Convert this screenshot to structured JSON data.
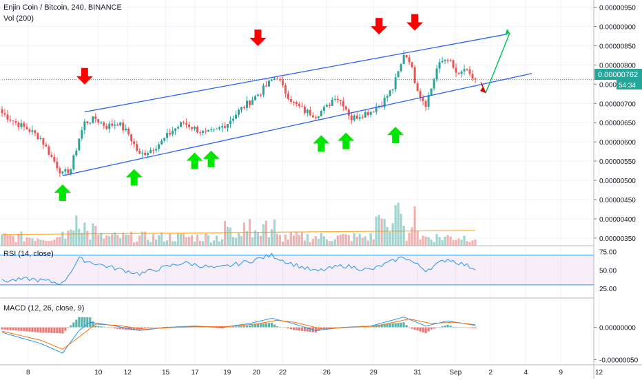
{
  "header": {
    "symbol_title": "Enjin Coin / Bitcoin, 240, BINANCE",
    "volume_label": "Vol (200)",
    "rsi_label": "RSI (14, close)",
    "macd_label": "MACD (12, 26, close, 9)"
  },
  "price_tag": {
    "price": "0.00000762",
    "countdown": "54:34"
  },
  "chart_data": [
    {
      "type": "candlestick",
      "title": "Enjin Coin / Bitcoin, 240, BINANCE",
      "x_ticks": [
        "8",
        "10",
        "12",
        "15",
        "17",
        "19",
        "20",
        "22",
        "26",
        "29",
        "31",
        "Sep",
        "2",
        "4",
        "9",
        "12"
      ],
      "y_ticks": [
        "0.00000950",
        "0.00000900",
        "0.00000850",
        "0.00000800",
        "0.00000750",
        "0.00000700",
        "0.00000650",
        "0.00000600",
        "0.00000550",
        "0.00000500",
        "0.00000450",
        "0.00000400",
        "0.00000350"
      ],
      "ylim": [
        3.3e-06,
        9.6e-06
      ],
      "last_price": 7.62e-06,
      "up_color": "#26a69a",
      "down_color": "#ef5350",
      "anchors": [
        [
          0,
          6.75e-06
        ],
        [
          5,
          6.5e-06
        ],
        [
          10,
          6.3e-06
        ],
        [
          14,
          6.1e-06
        ],
        [
          18,
          5.6e-06
        ],
        [
          22,
          5.15e-06
        ],
        [
          25,
          5.3e-06
        ],
        [
          28,
          6.1e-06
        ],
        [
          30,
          6.5e-06
        ],
        [
          34,
          6.6e-06
        ],
        [
          38,
          6.4e-06
        ],
        [
          42,
          6.5e-06
        ],
        [
          46,
          6.2e-06
        ],
        [
          50,
          5.65e-06
        ],
        [
          54,
          5.8e-06
        ],
        [
          58,
          6e-06
        ],
        [
          62,
          6.3e-06
        ],
        [
          66,
          6.5e-06
        ],
        [
          70,
          6.35e-06
        ],
        [
          74,
          6.2e-06
        ],
        [
          78,
          6.3e-06
        ],
        [
          82,
          6.5e-06
        ],
        [
          86,
          6.8e-06
        ],
        [
          90,
          7.05e-06
        ],
        [
          94,
          7.3e-06
        ],
        [
          98,
          7.6e-06
        ],
        [
          100,
          7.7e-06
        ],
        [
          102,
          7.4e-06
        ],
        [
          106,
          7e-06
        ],
        [
          110,
          6.8e-06
        ],
        [
          114,
          6.7e-06
        ],
        [
          118,
          6.9e-06
        ],
        [
          121,
          7.2e-06
        ],
        [
          124,
          7e-06
        ],
        [
          127,
          6.6e-06
        ],
        [
          130,
          6.7e-06
        ],
        [
          134,
          6.8e-06
        ],
        [
          138,
          7e-06
        ],
        [
          142,
          7.4e-06
        ],
        [
          145,
          8e-06
        ],
        [
          146,
          8.3e-06
        ],
        [
          148,
          8.15e-06
        ],
        [
          150,
          7.6e-06
        ],
        [
          152,
          7.2e-06
        ],
        [
          154,
          7e-06
        ],
        [
          156,
          7.4e-06
        ],
        [
          158,
          7.9e-06
        ],
        [
          160,
          8.1e-06
        ],
        [
          162,
          8.2e-06
        ],
        [
          164,
          7.9e-06
        ],
        [
          166,
          7.7e-06
        ],
        [
          168,
          7.9e-06
        ],
        [
          170,
          7.7e-06
        ],
        [
          172,
          7.62e-06
        ]
      ],
      "volume_ma": 0.18
    },
    {
      "type": "line",
      "title": "RSI (14, close)",
      "y_ticks": [
        "75.00",
        "50.00",
        "25.00"
      ],
      "upper_band": 70,
      "lower_band": 30,
      "ylim": [
        15,
        80
      ],
      "anchors": [
        [
          0,
          35
        ],
        [
          10,
          38
        ],
        [
          22,
          32
        ],
        [
          28,
          65
        ],
        [
          38,
          55
        ],
        [
          50,
          45
        ],
        [
          66,
          60
        ],
        [
          78,
          52
        ],
        [
          90,
          62
        ],
        [
          98,
          70
        ],
        [
          104,
          60
        ],
        [
          114,
          48
        ],
        [
          124,
          56
        ],
        [
          134,
          50
        ],
        [
          146,
          68
        ],
        [
          154,
          50
        ],
        [
          162,
          65
        ],
        [
          172,
          52
        ]
      ]
    },
    {
      "type": "line",
      "title": "MACD (12, 26, close, 9)",
      "y_ticks": [
        "0.00000000",
        "-0.00000050"
      ],
      "ylim": [
        -5.6e-07,
        3.8e-07
      ],
      "series": [
        {
          "role": "macd",
          "color": "#2196f3",
          "anchors": [
            [
              0,
              -8e-08
            ],
            [
              14,
              -2.5e-07
            ],
            [
              22,
              -4e-07
            ],
            [
              28,
              -5e-08
            ],
            [
              32,
              8e-08
            ],
            [
              40,
              3e-08
            ],
            [
              50,
              -5e-08
            ],
            [
              60,
              0.0
            ],
            [
              70,
              2e-08
            ],
            [
              80,
              0.0
            ],
            [
              90,
              6e-08
            ],
            [
              98,
              1.4e-07
            ],
            [
              104,
              8e-08
            ],
            [
              114,
              -5e-08
            ],
            [
              124,
              0.0
            ],
            [
              134,
              2e-08
            ],
            [
              146,
              1.6e-07
            ],
            [
              154,
              2e-08
            ],
            [
              162,
              1e-07
            ],
            [
              172,
              3e-08
            ]
          ]
        },
        {
          "role": "signal",
          "color": "#ff6d00",
          "anchors": [
            [
              0,
              -6e-08
            ],
            [
              14,
              -2e-07
            ],
            [
              22,
              -3.4e-07
            ],
            [
              28,
              -1.5e-07
            ],
            [
              34,
              5e-08
            ],
            [
              42,
              3e-08
            ],
            [
              52,
              -3e-08
            ],
            [
              62,
              0.0
            ],
            [
              72,
              1e-08
            ],
            [
              82,
              1e-08
            ],
            [
              92,
              5e-08
            ],
            [
              100,
              1.1e-07
            ],
            [
              106,
              8e-08
            ],
            [
              116,
              -2e-08
            ],
            [
              126,
              0.0
            ],
            [
              136,
              2e-08
            ],
            [
              148,
              1.3e-07
            ],
            [
              156,
              6e-08
            ],
            [
              164,
              8e-08
            ],
            [
              172,
              4e-08
            ]
          ]
        }
      ],
      "hist_pos_color": "#26a69a",
      "hist_neg_color": "#ef5350"
    }
  ],
  "annotations": {
    "up_arrows": [
      [
        22,
        5e-06
      ],
      [
        48,
        5.4e-06
      ],
      [
        70,
        5.83e-06
      ],
      [
        76,
        5.88e-06
      ],
      [
        116,
        6.28e-06
      ],
      [
        125,
        6.35e-06
      ],
      [
        143,
        6.5e-06
      ]
    ],
    "down_arrows": [
      [
        30,
        7.6e-06
      ],
      [
        93,
        8.6e-06
      ],
      [
        137,
        8.9e-06
      ],
      [
        150,
        9e-06
      ]
    ],
    "channel_color": "#2962ff",
    "forecast_up_color": "#00c853",
    "forecast_down_color": "#d50000"
  }
}
